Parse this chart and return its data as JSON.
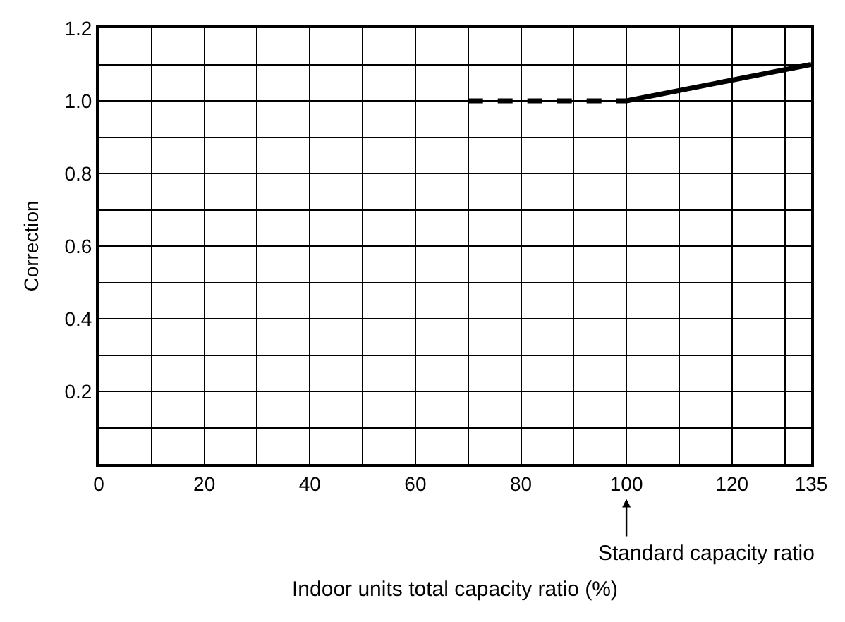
{
  "chart_data": {
    "type": "line",
    "xlabel": "Indoor units total capacity ratio (%)",
    "ylabel": "Correction",
    "series": [
      {
        "x": [
          70,
          100
        ],
        "values": [
          1.0,
          1.0
        ],
        "color": "#000000",
        "line_style": "dashed"
      },
      {
        "x": [
          100,
          135
        ],
        "values": [
          1.0,
          1.1
        ],
        "color": "#000000",
        "line_style": "solid"
      }
    ],
    "xlim": [
      0,
      135
    ],
    "ylim": [
      0,
      1.2
    ],
    "xticks": [
      0,
      {
        "value": 10,
        "label": null
      },
      20,
      {
        "value": 30,
        "label": null
      },
      40,
      {
        "value": 50,
        "label": null
      },
      60,
      {
        "value": 70,
        "label": null
      },
      80,
      {
        "value": 90,
        "label": null
      },
      100,
      {
        "value": 110,
        "label": null
      },
      120,
      {
        "value": 130,
        "label": null
      },
      135
    ],
    "yticks": [
      {
        "value": 0,
        "label": null
      },
      {
        "value": 0.1,
        "label": null
      },
      {
        "value": 0.2,
        "label": "0.2"
      },
      {
        "value": 0.3,
        "label": null
      },
      {
        "value": 0.4,
        "label": "0.4"
      },
      {
        "value": 0.5,
        "label": null
      },
      {
        "value": 0.6,
        "label": "0.6"
      },
      {
        "value": 0.7,
        "label": null
      },
      {
        "value": 0.8,
        "label": "0.8"
      },
      {
        "value": 0.9,
        "label": null
      },
      {
        "value": 1.0,
        "label": "1.0"
      },
      {
        "value": 1.1,
        "label": null
      },
      {
        "value": 1.2,
        "label": "1.2"
      }
    ],
    "grid": true,
    "marker": "none",
    "annotations": [
      "Standard capacity ratio"
    ]
  }
}
